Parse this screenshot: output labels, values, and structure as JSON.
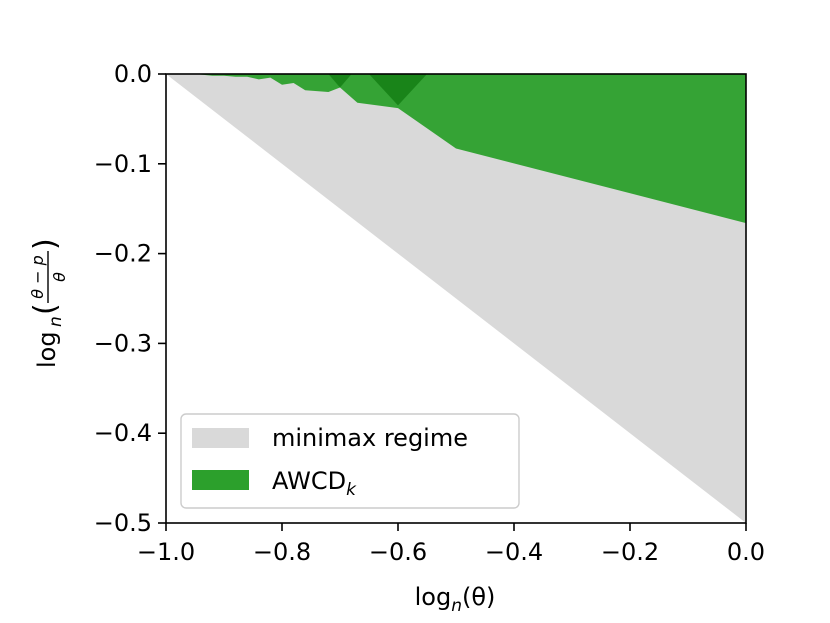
{
  "chart_data": {
    "type": "area",
    "title": "",
    "xlabel": "log",
    "xlabel_sub": "n",
    "xlabel_arg": "(θ)",
    "ylabel": "log",
    "ylabel_sub": "n",
    "ylabel_num": "θ − p",
    "ylabel_den": "θ",
    "xlim": [
      -1.0,
      0.0
    ],
    "ylim": [
      -0.5,
      0.0
    ],
    "xticks": [
      -1.0,
      -0.8,
      -0.6,
      -0.4,
      -0.2,
      0.0
    ],
    "xtick_labels": [
      "−1.0",
      "−0.8",
      "−0.6",
      "−0.4",
      "−0.2",
      "0.0"
    ],
    "yticks": [
      0.0,
      -0.1,
      -0.2,
      -0.3,
      -0.4,
      -0.5
    ],
    "ytick_labels": [
      "0.0",
      "−0.1",
      "−0.2",
      "−0.3",
      "−0.4",
      "−0.5"
    ],
    "grid": false,
    "legend_position": "bottom-left",
    "series": [
      {
        "name": "minimax regime",
        "color": "#d9d9d9",
        "polygon": [
          [
            -1.0,
            0.0
          ],
          [
            0.0,
            0.0
          ],
          [
            0.0,
            -0.5
          ]
        ]
      },
      {
        "name": "AWCD",
        "name_sub": "k",
        "color": "#2ca02c",
        "opacity": 0.95,
        "boundary": [
          [
            -0.95,
            0.0
          ],
          [
            -0.92,
            -0.002
          ],
          [
            -0.9,
            -0.002
          ],
          [
            -0.88,
            -0.003
          ],
          [
            -0.86,
            -0.003
          ],
          [
            -0.84,
            -0.006
          ],
          [
            -0.82,
            -0.004
          ],
          [
            -0.8,
            -0.012
          ],
          [
            -0.78,
            -0.01
          ],
          [
            -0.76,
            -0.018
          ],
          [
            -0.72,
            -0.02
          ],
          [
            -0.7,
            -0.015
          ],
          [
            -0.67,
            -0.032
          ],
          [
            -0.6,
            -0.038
          ],
          [
            -0.5,
            -0.083
          ],
          [
            0.0,
            -0.166
          ]
        ],
        "overlap_patches": [
          [
            [
              -0.65,
              0.0
            ],
            [
              -0.55,
              0.0
            ],
            [
              -0.6,
              -0.035
            ]
          ],
          [
            [
              -0.72,
              0.0
            ],
            [
              -0.68,
              0.0
            ],
            [
              -0.7,
              -0.015
            ]
          ]
        ]
      }
    ]
  }
}
